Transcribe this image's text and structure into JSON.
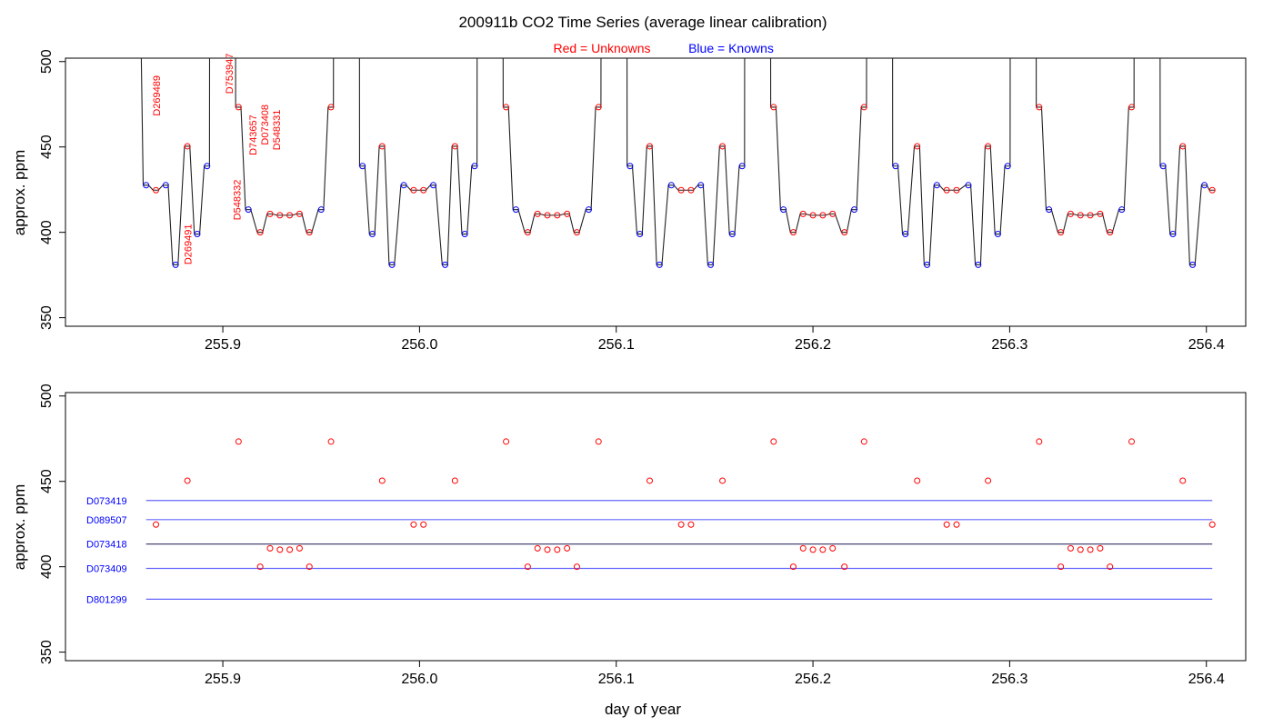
{
  "title": "200911b   CO2 Time Series (average linear calibration)",
  "legend": {
    "red_label": "Red = Unknowns",
    "blue_label": "Blue = Knowns",
    "red_color": "#ff0000",
    "blue_color": "#0000ff"
  },
  "chart_data": [
    {
      "type": "line",
      "panel": "top",
      "ylabel": "approx. ppm",
      "xlabel": "",
      "xlim": [
        255.82,
        256.42
      ],
      "ylim": [
        345,
        502
      ],
      "x_ticks": [
        "255.9",
        "256.0",
        "256.1",
        "256.2",
        "256.3",
        "256.4"
      ],
      "y_ticks": [
        "350",
        "400",
        "450",
        "500"
      ],
      "vertical_labels": [
        {
          "text": "D269489",
          "x": 255.868,
          "y": 480,
          "color": "#ff0000"
        },
        {
          "text": "D753947",
          "x": 255.905,
          "y": 493,
          "color": "#ff0000"
        },
        {
          "text": "D269491",
          "x": 255.884,
          "y": 393,
          "color": "#ff0000"
        },
        {
          "text": "D548332",
          "x": 255.909,
          "y": 419,
          "color": "#ff0000"
        },
        {
          "text": "D743657",
          "x": 255.917,
          "y": 457,
          "color": "#ff0000"
        },
        {
          "text": "D073408",
          "x": 255.923,
          "y": 463,
          "color": "#ff0000"
        },
        {
          "text": "D548331",
          "x": 255.929,
          "y": 460,
          "color": "#ff0000"
        }
      ]
    },
    {
      "type": "scatter",
      "panel": "bottom",
      "ylabel": "approx. ppm",
      "xlabel": "day of year",
      "xlim": [
        255.82,
        256.42
      ],
      "ylim": [
        345,
        502
      ],
      "x_ticks": [
        "255.9",
        "256.0",
        "256.1",
        "256.2",
        "256.3",
        "256.4"
      ],
      "y_ticks": [
        "350",
        "400",
        "450",
        "500"
      ],
      "reference_lines": [
        {
          "name": "D073419",
          "y0": 438.8,
          "y1": 438.8,
          "color": "#6666ff"
        },
        {
          "name": "D089507",
          "y0": 427.6,
          "y1": 427.6,
          "color": "#6666ff"
        },
        {
          "name": "D073418",
          "y0": 413.3,
          "y1": 413.3,
          "color": "#333366"
        },
        {
          "name": "D073409",
          "y0": 399.0,
          "y1": 399.0,
          "color": "#6666ff"
        },
        {
          "name": "D801299",
          "y0": 381.0,
          "y1": 381.0,
          "color": "#6666ff"
        }
      ],
      "line_x_range": [
        255.861,
        256.403
      ]
    }
  ],
  "series": {
    "unknowns": [
      {
        "x": 255.866,
        "y": 424.7
      },
      {
        "x": 255.882,
        "y": 450.4
      },
      {
        "x": 255.908,
        "y": 473.3
      },
      {
        "x": 255.919,
        "y": 400.0
      },
      {
        "x": 255.924,
        "y": 410.8
      },
      {
        "x": 255.929,
        "y": 410.0
      },
      {
        "x": 255.934,
        "y": 410.0
      },
      {
        "x": 255.939,
        "y": 410.8
      },
      {
        "x": 255.944,
        "y": 400.0
      },
      {
        "x": 255.955,
        "y": 473.3
      },
      {
        "x": 255.981,
        "y": 450.4
      },
      {
        "x": 255.997,
        "y": 424.7
      },
      {
        "x": 256.002,
        "y": 424.7
      },
      {
        "x": 256.018,
        "y": 450.4
      },
      {
        "x": 256.044,
        "y": 473.3
      },
      {
        "x": 256.055,
        "y": 400.0
      },
      {
        "x": 256.06,
        "y": 410.8
      },
      {
        "x": 256.065,
        "y": 410.0
      },
      {
        "x": 256.07,
        "y": 410.0
      },
      {
        "x": 256.075,
        "y": 410.8
      },
      {
        "x": 256.08,
        "y": 400.0
      },
      {
        "x": 256.091,
        "y": 473.3
      },
      {
        "x": 256.117,
        "y": 450.4
      },
      {
        "x": 256.133,
        "y": 424.7
      },
      {
        "x": 256.138,
        "y": 424.7
      },
      {
        "x": 256.154,
        "y": 450.4
      },
      {
        "x": 256.18,
        "y": 473.3
      },
      {
        "x": 256.19,
        "y": 400.0
      },
      {
        "x": 256.195,
        "y": 410.8
      },
      {
        "x": 256.2,
        "y": 410.0
      },
      {
        "x": 256.205,
        "y": 410.0
      },
      {
        "x": 256.21,
        "y": 410.8
      },
      {
        "x": 256.216,
        "y": 400.0
      },
      {
        "x": 256.226,
        "y": 473.3
      },
      {
        "x": 256.253,
        "y": 450.4
      },
      {
        "x": 256.268,
        "y": 424.7
      },
      {
        "x": 256.273,
        "y": 424.7
      },
      {
        "x": 256.289,
        "y": 450.4
      },
      {
        "x": 256.315,
        "y": 473.3
      },
      {
        "x": 256.326,
        "y": 400.0
      },
      {
        "x": 256.331,
        "y": 410.8
      },
      {
        "x": 256.336,
        "y": 410.0
      },
      {
        "x": 256.341,
        "y": 410.0
      },
      {
        "x": 256.346,
        "y": 410.8
      },
      {
        "x": 256.351,
        "y": 400.0
      },
      {
        "x": 256.362,
        "y": 473.3
      },
      {
        "x": 256.388,
        "y": 450.4
      },
      {
        "x": 256.403,
        "y": 424.7
      }
    ],
    "knowns": [
      {
        "x": 255.861,
        "y": 427.6
      },
      {
        "x": 255.871,
        "y": 427.6
      },
      {
        "x": 255.876,
        "y": 381.0
      },
      {
        "x": 255.887,
        "y": 399.0
      },
      {
        "x": 255.892,
        "y": 438.8
      },
      {
        "x": 255.913,
        "y": 413.3
      },
      {
        "x": 255.95,
        "y": 413.3
      },
      {
        "x": 255.971,
        "y": 438.8
      },
      {
        "x": 255.976,
        "y": 399.0
      },
      {
        "x": 255.986,
        "y": 381.0
      },
      {
        "x": 255.992,
        "y": 427.6
      },
      {
        "x": 256.007,
        "y": 427.6
      },
      {
        "x": 256.013,
        "y": 381.0
      },
      {
        "x": 256.023,
        "y": 399.0
      },
      {
        "x": 256.028,
        "y": 438.8
      },
      {
        "x": 256.049,
        "y": 413.3
      },
      {
        "x": 256.086,
        "y": 413.3
      },
      {
        "x": 256.107,
        "y": 438.8
      },
      {
        "x": 256.112,
        "y": 399.0
      },
      {
        "x": 256.122,
        "y": 381.0
      },
      {
        "x": 256.128,
        "y": 427.6
      },
      {
        "x": 256.143,
        "y": 427.6
      },
      {
        "x": 256.148,
        "y": 381.0
      },
      {
        "x": 256.159,
        "y": 399.0
      },
      {
        "x": 256.164,
        "y": 438.8
      },
      {
        "x": 256.185,
        "y": 413.3
      },
      {
        "x": 256.221,
        "y": 413.3
      },
      {
        "x": 256.242,
        "y": 438.8
      },
      {
        "x": 256.247,
        "y": 399.0
      },
      {
        "x": 256.258,
        "y": 381.0
      },
      {
        "x": 256.263,
        "y": 427.6
      },
      {
        "x": 256.279,
        "y": 427.6
      },
      {
        "x": 256.284,
        "y": 381.0
      },
      {
        "x": 256.294,
        "y": 399.0
      },
      {
        "x": 256.299,
        "y": 438.8
      },
      {
        "x": 256.32,
        "y": 413.3
      },
      {
        "x": 256.357,
        "y": 413.3
      },
      {
        "x": 256.378,
        "y": 438.8
      },
      {
        "x": 256.383,
        "y": 399.0
      },
      {
        "x": 256.393,
        "y": 381.0
      },
      {
        "x": 256.399,
        "y": 427.6
      }
    ]
  }
}
